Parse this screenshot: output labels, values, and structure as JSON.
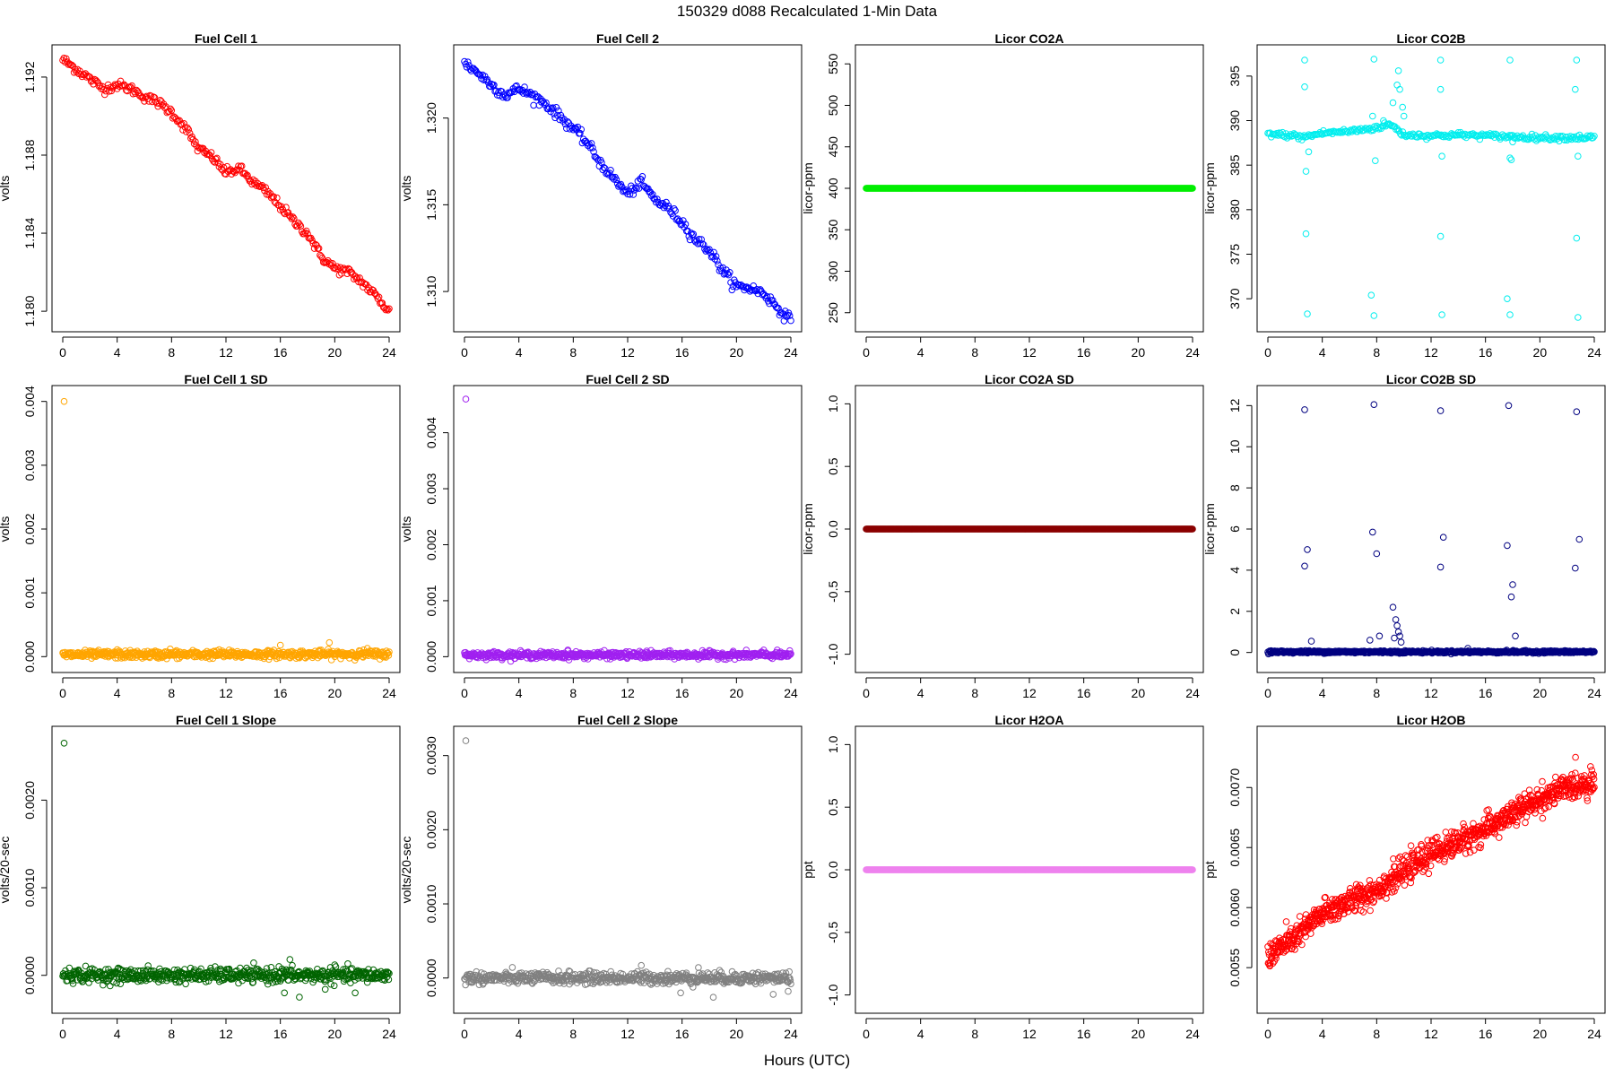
{
  "figure": {
    "title": "150329   d088   Recalculated 1-Min Data",
    "xlabel": "Hours (UTC)"
  },
  "chart_data": [
    {
      "type": "scatter",
      "title": "Fuel Cell 1",
      "ylabel": "volts",
      "color": "#ff0000",
      "xlim": [
        0,
        24
      ],
      "ylim": [
        1.1795,
        1.1931
      ],
      "yticks": [
        1.18,
        1.184,
        1.188,
        1.192
      ],
      "ytick_labels": [
        "1.180",
        "1.184",
        "1.188",
        "1.192"
      ],
      "xticks": [
        0,
        4,
        8,
        12,
        16,
        20,
        24
      ],
      "xtick_labels": [
        "0",
        "4",
        "8",
        "12",
        "16",
        "20",
        "24"
      ],
      "x": [
        0,
        1,
        2,
        3,
        4,
        5,
        6,
        7,
        8,
        9,
        10,
        11,
        12,
        13,
        14,
        15,
        16,
        17,
        18,
        19,
        20,
        21,
        22,
        23,
        24
      ],
      "y": [
        1.1929,
        1.1924,
        1.1919,
        1.1914,
        1.1916,
        1.1914,
        1.191,
        1.1907,
        1.1902,
        1.1894,
        1.1883,
        1.1879,
        1.1871,
        1.1873,
        1.1866,
        1.1861,
        1.1854,
        1.1846,
        1.184,
        1.1828,
        1.1822,
        1.182,
        1.1815,
        1.1808,
        1.18
      ],
      "noise": 0.00012,
      "density": 12
    },
    {
      "type": "scatter",
      "title": "Fuel Cell 2",
      "ylabel": "volts",
      "color": "#0000ff",
      "xlim": [
        0,
        24
      ],
      "ylim": [
        1.3083,
        1.3236
      ],
      "yticks": [
        1.31,
        1.315,
        1.32
      ],
      "ytick_labels": [
        "1.310",
        "1.315",
        "1.320"
      ],
      "xticks": [
        0,
        4,
        8,
        12,
        16,
        20,
        24
      ],
      "xtick_labels": [
        "0",
        "4",
        "8",
        "12",
        "16",
        "20",
        "24"
      ],
      "x": [
        0,
        1,
        2,
        3,
        4,
        5,
        6,
        7,
        8,
        9,
        10,
        11,
        12,
        13,
        14,
        15,
        16,
        17,
        18,
        19,
        20,
        21,
        22,
        23,
        24
      ],
      "y": [
        1.3232,
        1.3226,
        1.3219,
        1.3213,
        1.3217,
        1.3213,
        1.3208,
        1.3201,
        1.3194,
        1.3186,
        1.3174,
        1.3165,
        1.3156,
        1.3163,
        1.3153,
        1.3148,
        1.314,
        1.313,
        1.3124,
        1.3112,
        1.3103,
        1.3102,
        1.3099,
        1.3091,
        1.3083
      ],
      "noise": 0.00015,
      "density": 12
    },
    {
      "type": "scatter",
      "title": "Licor CO2A",
      "ylabel": "licor-ppm",
      "color": "#00ee00",
      "xlim": [
        0,
        24
      ],
      "ylim": [
        240,
        560
      ],
      "yticks": [
        250,
        300,
        350,
        400,
        450,
        500,
        550
      ],
      "ytick_labels": [
        "250",
        "300",
        "350",
        "400",
        "450",
        "500",
        "550"
      ],
      "xticks": [
        0,
        4,
        8,
        12,
        16,
        20,
        24
      ],
      "xtick_labels": [
        "0",
        "4",
        "8",
        "12",
        "16",
        "20",
        "24"
      ],
      "x": [
        0,
        24
      ],
      "y": [
        400,
        400
      ],
      "noise": 0,
      "density": 25
    },
    {
      "type": "scatter",
      "title": "Licor CO2B",
      "ylabel": "licor-ppm",
      "color": "#00eeee",
      "xlim": [
        0,
        24
      ],
      "ylim": [
        367.5,
        397.3
      ],
      "yticks": [
        370,
        375,
        380,
        385,
        390,
        395
      ],
      "ytick_labels": [
        "370",
        "375",
        "380",
        "385",
        "390",
        "395"
      ],
      "xticks": [
        0,
        4,
        8,
        12,
        16,
        20,
        24
      ],
      "xtick_labels": [
        "0",
        "4",
        "8",
        "12",
        "16",
        "20",
        "24"
      ],
      "x": [
        0,
        2,
        2.5,
        4,
        6,
        7,
        8,
        9,
        10,
        12,
        14,
        16,
        18,
        20,
        22,
        24
      ],
      "y": [
        388.5,
        388.3,
        388.1,
        388.6,
        388.8,
        389.0,
        389.2,
        389.6,
        388.4,
        388.3,
        388.4,
        388.3,
        388.2,
        388.1,
        388.1,
        388.1
      ],
      "noise": 0.15,
      "density": 12,
      "outliers": [
        [
          2.7,
          396.8
        ],
        [
          2.7,
          393.8
        ],
        [
          2.8,
          384.3
        ],
        [
          2.8,
          377.3
        ],
        [
          2.9,
          368.3
        ],
        [
          3.0,
          386.5
        ],
        [
          7.8,
          396.9
        ],
        [
          7.7,
          390.5
        ],
        [
          7.6,
          370.4
        ],
        [
          7.8,
          368.1
        ],
        [
          7.9,
          385.5
        ],
        [
          8.5,
          390.0
        ],
        [
          9.2,
          392.0
        ],
        [
          9.5,
          394.0
        ],
        [
          9.6,
          395.6
        ],
        [
          9.7,
          393.5
        ],
        [
          9.9,
          391.5
        ],
        [
          10.0,
          390.5
        ],
        [
          12.7,
          396.8
        ],
        [
          12.7,
          393.5
        ],
        [
          12.8,
          386.0
        ],
        [
          12.7,
          377.0
        ],
        [
          12.8,
          368.2
        ],
        [
          17.8,
          396.8
        ],
        [
          17.6,
          370.0
        ],
        [
          17.8,
          368.2
        ],
        [
          17.8,
          385.8
        ],
        [
          17.9,
          385.6
        ],
        [
          18.0,
          387.6
        ],
        [
          22.7,
          396.8
        ],
        [
          22.6,
          393.5
        ],
        [
          22.8,
          386.0
        ],
        [
          22.7,
          376.8
        ],
        [
          22.8,
          367.9
        ]
      ]
    },
    {
      "type": "scatter",
      "title": "Fuel Cell 1 SD",
      "ylabel": "volts",
      "color": "#ffa500",
      "xlim": [
        0,
        24
      ],
      "ylim": [
        -8e-05,
        0.00408
      ],
      "yticks": [
        0.0,
        0.001,
        0.002,
        0.003,
        0.004
      ],
      "ytick_labels": [
        "0.000",
        "0.001",
        "0.002",
        "0.003",
        "0.004"
      ],
      "xticks": [
        0,
        4,
        8,
        12,
        16,
        20,
        24
      ],
      "xtick_labels": [
        "0",
        "4",
        "8",
        "12",
        "16",
        "20",
        "24"
      ],
      "x": [
        0,
        24
      ],
      "y": [
        3e-05,
        4e-05
      ],
      "noise": 3e-05,
      "density": 25,
      "outliers": [
        [
          0.1,
          0.004
        ],
        [
          16.0,
          0.00018
        ],
        [
          19.6,
          0.00022
        ],
        [
          7.9,
          0.00012
        ],
        [
          11.5,
          0.00011
        ],
        [
          22.4,
          0.00013
        ],
        [
          4.0,
          0.00011
        ]
      ]
    },
    {
      "type": "scatter",
      "title": "Fuel Cell 2 SD",
      "ylabel": "volts",
      "color": "#a020f0",
      "xlim": [
        0,
        24
      ],
      "ylim": [
        -9e-05,
        0.00465
      ],
      "yticks": [
        0.0,
        0.001,
        0.002,
        0.003,
        0.004
      ],
      "ytick_labels": [
        "0.000",
        "0.001",
        "0.002",
        "0.003",
        "0.004"
      ],
      "xticks": [
        0,
        4,
        8,
        12,
        16,
        20,
        24
      ],
      "xtick_labels": [
        "0",
        "4",
        "8",
        "12",
        "16",
        "20",
        "24"
      ],
      "x": [
        0,
        24
      ],
      "y": [
        3e-05,
        3e-05
      ],
      "noise": 3e-05,
      "density": 25,
      "outliers": [
        [
          0.1,
          0.0046
        ],
        [
          7.6,
          0.00012
        ],
        [
          13.4,
          0.0001
        ],
        [
          17.5,
          0.00011
        ],
        [
          22.0,
          0.00012
        ]
      ]
    },
    {
      "type": "scatter",
      "title": "Licor CO2A SD",
      "ylabel": "licor-ppm",
      "color": "#8b0000",
      "xlim": [
        0,
        24
      ],
      "ylim": [
        -1.06,
        1.06
      ],
      "yticks": [
        -1.0,
        -0.5,
        0.0,
        0.5,
        1.0
      ],
      "ytick_labels": [
        "-1.0",
        "-0.5",
        "0.0",
        "0.5",
        "1.0"
      ],
      "xticks": [
        0,
        4,
        8,
        12,
        16,
        20,
        24
      ],
      "xtick_labels": [
        "0",
        "4",
        "8",
        "12",
        "16",
        "20",
        "24"
      ],
      "x": [
        0,
        24
      ],
      "y": [
        0,
        0
      ],
      "noise": 0,
      "density": 25
    },
    {
      "type": "scatter",
      "title": "Licor CO2B SD",
      "ylabel": "licor-ppm",
      "color": "#000080",
      "xlim": [
        0,
        24
      ],
      "ylim": [
        -0.45,
        12.45
      ],
      "yticks": [
        0,
        2,
        4,
        6,
        8,
        10,
        12
      ],
      "ytick_labels": [
        "0",
        "2",
        "4",
        "6",
        "8",
        "10",
        "12"
      ],
      "xticks": [
        0,
        4,
        8,
        12,
        16,
        20,
        24
      ],
      "xtick_labels": [
        "0",
        "4",
        "8",
        "12",
        "16",
        "20",
        "24"
      ],
      "x": [
        0,
        24
      ],
      "y": [
        0.03,
        0.03
      ],
      "noise": 0.03,
      "density": 25,
      "outliers": [
        [
          2.7,
          11.8
        ],
        [
          2.9,
          5.0
        ],
        [
          2.7,
          4.2
        ],
        [
          3.2,
          0.55
        ],
        [
          7.8,
          12.05
        ],
        [
          7.7,
          5.85
        ],
        [
          8.0,
          4.8
        ],
        [
          7.5,
          0.6
        ],
        [
          8.2,
          0.8
        ],
        [
          9.2,
          2.2
        ],
        [
          9.4,
          1.6
        ],
        [
          9.5,
          1.3
        ],
        [
          9.6,
          1.0
        ],
        [
          9.7,
          0.8
        ],
        [
          9.8,
          0.5
        ],
        [
          9.3,
          0.7
        ],
        [
          12.7,
          11.75
        ],
        [
          12.9,
          5.6
        ],
        [
          12.7,
          4.15
        ],
        [
          14.7,
          0.2
        ],
        [
          17.7,
          12.0
        ],
        [
          17.6,
          5.2
        ],
        [
          18.0,
          3.3
        ],
        [
          17.9,
          2.7
        ],
        [
          18.2,
          0.8
        ],
        [
          22.7,
          11.7
        ],
        [
          22.9,
          5.5
        ],
        [
          22.6,
          4.1
        ]
      ]
    },
    {
      "type": "scatter",
      "title": "Fuel Cell 1 Slope",
      "ylabel": "volts/20-sec",
      "color": "#006400",
      "xlim": [
        0,
        24
      ],
      "ylim": [
        -0.00031,
        0.00272
      ],
      "yticks": [
        0.0,
        0.001,
        0.002
      ],
      "ytick_labels": [
        "0.0000",
        "0.0010",
        "0.0020"
      ],
      "xticks": [
        0,
        4,
        8,
        12,
        16,
        20,
        24
      ],
      "xtick_labels": [
        "0",
        "4",
        "8",
        "12",
        "16",
        "20",
        "24"
      ],
      "x": [
        0,
        24
      ],
      "y": [
        0,
        0
      ],
      "noise": 4e-05,
      "density": 25,
      "outliers": [
        [
          0.1,
          0.00265
        ],
        [
          15.9,
          0.0001
        ],
        [
          16.3,
          -0.0002
        ],
        [
          17.4,
          -0.00025
        ],
        [
          19.3,
          -0.00016
        ],
        [
          21.5,
          -0.0002
        ],
        [
          20.0,
          0.00012
        ],
        [
          16.7,
          0.00018
        ]
      ]
    },
    {
      "type": "scatter",
      "title": "Fuel Cell 2 Slope",
      "ylabel": "volts/20-sec",
      "color": "#808080",
      "xlim": [
        0,
        24
      ],
      "ylim": [
        -0.00033,
        0.00325
      ],
      "yticks": [
        0.0,
        0.001,
        0.002,
        0.003
      ],
      "ytick_labels": [
        "0.0000",
        "0.0010",
        "0.0020",
        "0.0030"
      ],
      "xticks": [
        0,
        4,
        8,
        12,
        16,
        20,
        24
      ],
      "xtick_labels": [
        "0",
        "4",
        "8",
        "12",
        "16",
        "20",
        "24"
      ],
      "x": [
        0,
        24
      ],
      "y": [
        0,
        0
      ],
      "noise": 4e-05,
      "density": 25,
      "outliers": [
        [
          0.1,
          0.0032
        ],
        [
          13.0,
          0.00017
        ],
        [
          15.9,
          -0.0002
        ],
        [
          18.3,
          -0.00026
        ],
        [
          22.7,
          -0.00022
        ],
        [
          23.8,
          -0.00018
        ],
        [
          17.2,
          0.00014
        ]
      ]
    },
    {
      "type": "scatter",
      "title": "Licor H2OA",
      "ylabel": "ppt",
      "color": "#ee82ee",
      "xlim": [
        0,
        24
      ],
      "ylim": [
        -1.06,
        1.06
      ],
      "yticks": [
        -1.0,
        -0.5,
        0.0,
        0.5,
        1.0
      ],
      "ytick_labels": [
        "-1.0",
        "-0.5",
        "0.0",
        "0.5",
        "1.0"
      ],
      "xticks": [
        0,
        4,
        8,
        12,
        16,
        20,
        24
      ],
      "xtick_labels": [
        "0",
        "4",
        "8",
        "12",
        "16",
        "20",
        "24"
      ],
      "x": [
        0,
        24
      ],
      "y": [
        0,
        0
      ],
      "noise": 0,
      "density": 25
    },
    {
      "type": "scatter",
      "title": "Licor H2OB",
      "ylabel": "ppt",
      "color": "#ff0000",
      "xlim": [
        0,
        24
      ],
      "ylim": [
        0.00521,
        0.00742
      ],
      "yticks": [
        0.0055,
        0.006,
        0.0065,
        0.007
      ],
      "ytick_labels": [
        "0.0055",
        "0.0060",
        "0.0065",
        "0.0070"
      ],
      "xticks": [
        0,
        4,
        8,
        12,
        16,
        20,
        24
      ],
      "xtick_labels": [
        "0",
        "4",
        "8",
        "12",
        "16",
        "20",
        "24"
      ],
      "x": [
        0,
        2,
        4,
        6,
        8,
        10,
        12,
        14,
        16,
        18,
        20,
        22,
        24
      ],
      "y": [
        0.0056,
        0.00575,
        0.00595,
        0.00605,
        0.00615,
        0.0063,
        0.00645,
        0.00655,
        0.00665,
        0.00678,
        0.0069,
        0.007,
        0.00705
      ],
      "noise": 5.5e-05,
      "density": 40
    }
  ]
}
